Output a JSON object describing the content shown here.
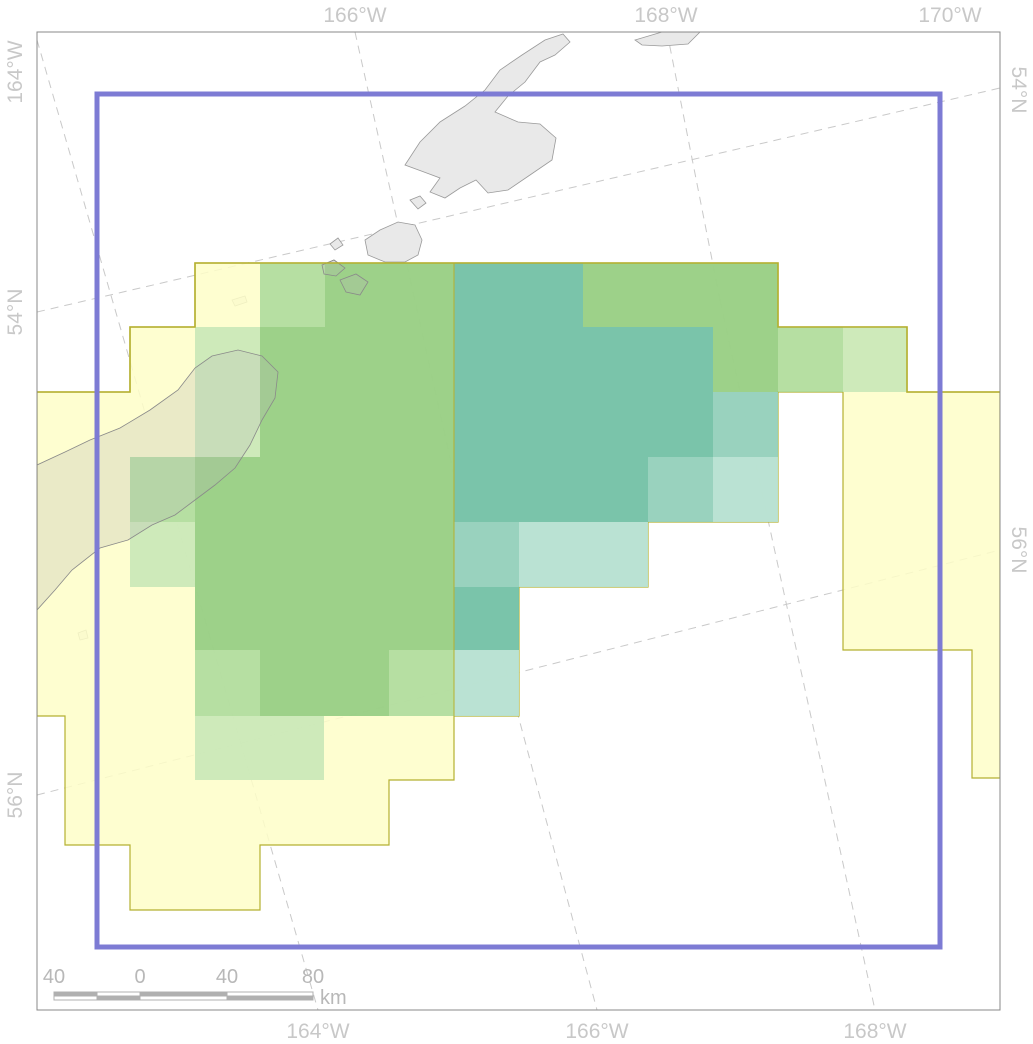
{
  "colors": {
    "survey_extent": "#fefec8",
    "survey_outline": "#b5b030",
    "grid_high": "#8cc97c",
    "grid_mid": "#a9d99a",
    "grid_low": "#c6e6b6",
    "teal_high": "#73c1a8",
    "teal_mid": "#93d0bd",
    "teal_low": "#b6e0d3",
    "study_box": "#7d7bd4",
    "land": "#e9e9e9",
    "graticule": "#c9c9c9"
  },
  "ticks": {
    "top": [
      "166°W",
      "168°W",
      "170°W"
    ],
    "bottom": [
      "164°W",
      "166°W",
      "168°W"
    ],
    "left": [
      "164°W",
      "54°N",
      "56°N"
    ],
    "right": [
      "54°N",
      "56°N"
    ]
  },
  "scale_bar": {
    "labels": [
      "40",
      "0",
      "40",
      "80"
    ],
    "unit": "km"
  }
}
